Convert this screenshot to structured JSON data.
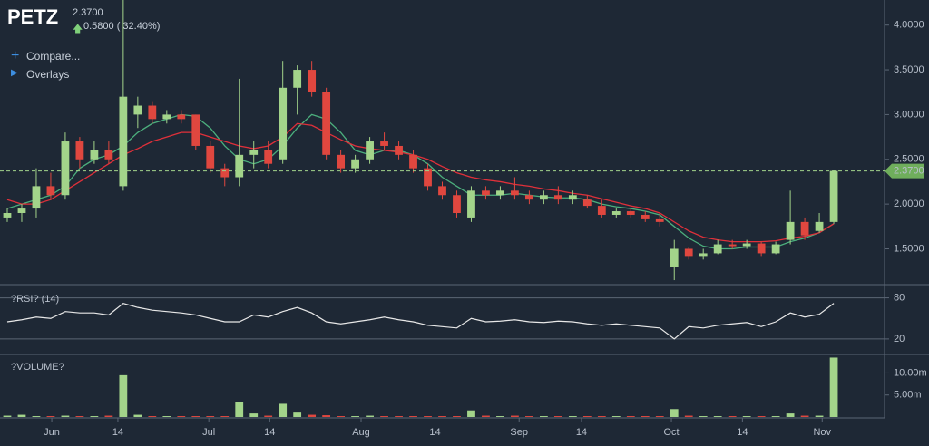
{
  "header": {
    "symbol": "PETZ",
    "price": "2.3700",
    "change": "0.5800 ( 32.40%)",
    "compare": "Compare...",
    "overlays": "Overlays"
  },
  "chart_data": [
    {
      "type": "candlestick",
      "up_color": "#a3d48a",
      "down_color": "#e0473f",
      "xlim": [
        -0.5,
        60.5
      ],
      "ylim": [
        1.12,
        4.24
      ],
      "yticks": [
        {
          "value": 1.5,
          "label": "1.5000"
        },
        {
          "value": 2,
          "label": "2.0000"
        },
        {
          "value": 2.5,
          "label": "2.5000"
        },
        {
          "value": 3,
          "label": "3.0000"
        },
        {
          "value": 3.5,
          "label": "3.5000"
        },
        {
          "value": 4,
          "label": "4.0000"
        }
      ],
      "last_price": {
        "value": 2.37,
        "label": "2.3700"
      },
      "candles": [
        [
          1.85,
          1.95,
          1.8,
          1.9
        ],
        [
          1.9,
          2.0,
          1.8,
          1.95
        ],
        [
          1.95,
          2.4,
          1.85,
          2.2
        ],
        [
          2.2,
          2.35,
          2.05,
          2.1
        ],
        [
          2.1,
          2.8,
          2.05,
          2.7
        ],
        [
          2.7,
          2.75,
          2.4,
          2.5
        ],
        [
          2.5,
          2.7,
          2.45,
          2.6
        ],
        [
          2.6,
          2.7,
          2.45,
          2.5
        ],
        [
          2.2,
          4.3,
          2.15,
          3.2
        ],
        [
          3.0,
          3.2,
          2.85,
          3.1
        ],
        [
          3.1,
          3.15,
          2.9,
          2.95
        ],
        [
          2.95,
          3.05,
          2.9,
          3.0
        ],
        [
          3.0,
          3.05,
          2.9,
          2.95
        ],
        [
          3.0,
          3.0,
          2.6,
          2.65
        ],
        [
          2.65,
          2.7,
          2.35,
          2.4
        ],
        [
          2.4,
          2.45,
          2.2,
          2.3
        ],
        [
          2.3,
          3.4,
          2.2,
          2.55
        ],
        [
          2.55,
          2.7,
          2.4,
          2.6
        ],
        [
          2.6,
          2.7,
          2.4,
          2.45
        ],
        [
          2.5,
          3.6,
          2.45,
          3.3
        ],
        [
          3.3,
          3.55,
          3.0,
          3.5
        ],
        [
          3.5,
          3.6,
          3.2,
          3.25
        ],
        [
          3.25,
          3.3,
          2.5,
          2.55
        ],
        [
          2.55,
          2.6,
          2.35,
          2.4
        ],
        [
          2.4,
          2.55,
          2.35,
          2.5
        ],
        [
          2.5,
          2.75,
          2.45,
          2.7
        ],
        [
          2.7,
          2.8,
          2.6,
          2.65
        ],
        [
          2.65,
          2.7,
          2.5,
          2.55
        ],
        [
          2.55,
          2.6,
          2.35,
          2.4
        ],
        [
          2.4,
          2.45,
          2.15,
          2.2
        ],
        [
          2.2,
          2.25,
          2.05,
          2.1
        ],
        [
          2.1,
          2.15,
          1.85,
          1.9
        ],
        [
          1.85,
          2.2,
          1.8,
          2.15
        ],
        [
          2.15,
          2.2,
          2.05,
          2.1
        ],
        [
          2.1,
          2.2,
          2.05,
          2.15
        ],
        [
          2.15,
          2.3,
          2.05,
          2.1
        ],
        [
          2.1,
          2.15,
          2.0,
          2.05
        ],
        [
          2.05,
          2.15,
          2.0,
          2.1
        ],
        [
          2.1,
          2.2,
          2.0,
          2.05
        ],
        [
          2.05,
          2.15,
          2.0,
          2.1
        ],
        [
          2.05,
          2.1,
          1.95,
          1.98
        ],
        [
          1.98,
          2.05,
          1.85,
          1.88
        ],
        [
          1.88,
          1.95,
          1.85,
          1.92
        ],
        [
          1.92,
          1.95,
          1.85,
          1.88
        ],
        [
          1.88,
          1.92,
          1.8,
          1.83
        ],
        [
          1.83,
          1.9,
          1.75,
          1.8
        ],
        [
          1.3,
          1.6,
          1.15,
          1.5
        ],
        [
          1.5,
          1.52,
          1.38,
          1.42
        ],
        [
          1.42,
          1.5,
          1.38,
          1.45
        ],
        [
          1.45,
          1.6,
          1.44,
          1.55
        ],
        [
          1.55,
          1.6,
          1.5,
          1.53
        ],
        [
          1.53,
          1.6,
          1.5,
          1.56
        ],
        [
          1.56,
          1.58,
          1.42,
          1.45
        ],
        [
          1.45,
          1.58,
          1.44,
          1.55
        ],
        [
          1.6,
          2.15,
          1.55,
          1.8
        ],
        [
          1.8,
          1.85,
          1.6,
          1.65
        ],
        [
          1.7,
          1.9,
          1.68,
          1.8
        ],
        [
          1.8,
          2.38,
          1.78,
          2.37
        ]
      ],
      "lines": [
        {
          "color": "#4caf7d",
          "values": [
            1.95,
            2.0,
            2.05,
            2.1,
            2.2,
            2.4,
            2.5,
            2.55,
            2.65,
            2.8,
            2.9,
            2.95,
            3.0,
            2.98,
            2.85,
            2.65,
            2.5,
            2.45,
            2.5,
            2.65,
            2.85,
            3.0,
            2.95,
            2.8,
            2.6,
            2.55,
            2.6,
            2.6,
            2.55,
            2.45,
            2.3,
            2.2,
            2.1,
            2.1,
            2.1,
            2.12,
            2.1,
            2.08,
            2.07,
            2.07,
            2.05,
            2.0,
            1.97,
            1.95,
            1.92,
            1.88,
            1.75,
            1.62,
            1.53,
            1.5,
            1.5,
            1.52,
            1.52,
            1.52,
            1.58,
            1.62,
            1.68,
            1.78
          ]
        },
        {
          "color": "#e0303a",
          "values": [
            2.05,
            2.0,
            2.0,
            2.05,
            2.15,
            2.25,
            2.35,
            2.45,
            2.55,
            2.62,
            2.7,
            2.75,
            2.8,
            2.8,
            2.75,
            2.7,
            2.65,
            2.62,
            2.65,
            2.75,
            2.9,
            2.88,
            2.8,
            2.72,
            2.65,
            2.62,
            2.6,
            2.58,
            2.55,
            2.5,
            2.42,
            2.35,
            2.3,
            2.27,
            2.25,
            2.22,
            2.2,
            2.17,
            2.15,
            2.12,
            2.1,
            2.06,
            2.02,
            1.98,
            1.95,
            1.9,
            1.8,
            1.7,
            1.63,
            1.6,
            1.58,
            1.58,
            1.58,
            1.59,
            1.62,
            1.64,
            1.68,
            1.78
          ]
        }
      ]
    },
    {
      "type": "line",
      "title": "?RSI? (14)",
      "color": "#e8e8e8",
      "xlim": [
        -0.5,
        60.5
      ],
      "ylim": [
        0,
        94
      ],
      "yticks": [
        20,
        80
      ],
      "values": [
        45,
        48,
        52,
        50,
        60,
        58,
        58,
        55,
        72,
        66,
        62,
        60,
        58,
        55,
        50,
        45,
        45,
        55,
        52,
        60,
        66,
        58,
        45,
        42,
        45,
        48,
        52,
        48,
        45,
        40,
        38,
        36,
        50,
        45,
        46,
        48,
        45,
        44,
        46,
        45,
        42,
        40,
        42,
        40,
        38,
        36,
        20,
        38,
        36,
        40,
        42,
        44,
        38,
        45,
        58,
        52,
        56,
        72
      ]
    },
    {
      "type": "bar",
      "title": "?VOLUME?",
      "up_color": "#a3d48a",
      "down_color": "#e0473f",
      "xlim": [
        -0.5,
        60.5
      ],
      "ylim": [
        0,
        13.8
      ],
      "yticks": [
        {
          "value": 5,
          "label": "5.00m"
        },
        {
          "value": 10,
          "label": "10.00m"
        }
      ],
      "xticks": [
        {
          "value": 3.07,
          "label": "Jun"
        },
        {
          "value": 7.63,
          "label": "14"
        },
        {
          "value": 13.9,
          "label": "Jul"
        },
        {
          "value": 18.1,
          "label": "14"
        },
        {
          "value": 24.4,
          "label": "Aug"
        },
        {
          "value": 29.5,
          "label": "14"
        },
        {
          "value": 35.3,
          "label": "Sep"
        },
        {
          "value": 39.6,
          "label": "14"
        },
        {
          "value": 45.8,
          "label": "Oct"
        },
        {
          "value": 50.7,
          "label": "14"
        },
        {
          "value": 56.2,
          "label": "Nov"
        }
      ],
      "values": [
        0.3,
        0.5,
        0.2,
        0.2,
        0.3,
        0.2,
        0.2,
        0.3,
        9.5,
        0.5,
        0.2,
        0.2,
        0.2,
        0.2,
        0.2,
        0.2,
        3.5,
        0.8,
        0.3,
        3.0,
        1.0,
        0.5,
        0.4,
        0.2,
        0.2,
        0.3,
        0.2,
        0.2,
        0.2,
        0.2,
        0.2,
        0.2,
        1.5,
        0.3,
        0.2,
        0.3,
        0.2,
        0.2,
        0.2,
        0.2,
        0.2,
        0.2,
        0.2,
        0.2,
        0.2,
        0.2,
        1.8,
        0.3,
        0.2,
        0.2,
        0.2,
        0.2,
        0.2,
        0.2,
        0.8,
        0.3,
        0.3,
        13.5
      ]
    }
  ]
}
